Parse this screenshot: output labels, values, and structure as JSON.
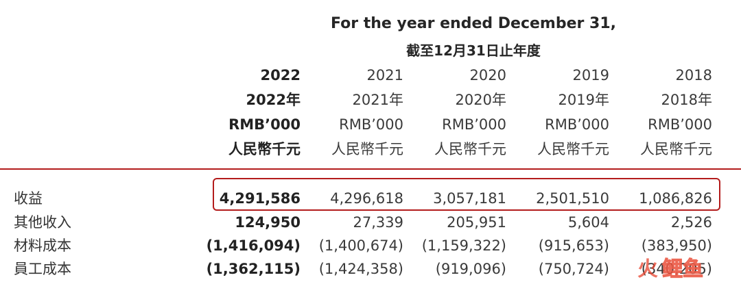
{
  "caption": {
    "en": "For the year ended December 31,",
    "zh": "截至12月31日止年度"
  },
  "columns": [
    {
      "year": "2022",
      "year_zh": "2022年",
      "unit": "RMB’000",
      "unit_zh": "人民幣千元"
    },
    {
      "year": "2021",
      "year_zh": "2021年",
      "unit": "RMB’000",
      "unit_zh": "人民幣千元"
    },
    {
      "year": "2020",
      "year_zh": "2020年",
      "unit": "RMB’000",
      "unit_zh": "人民幣千元"
    },
    {
      "year": "2019",
      "year_zh": "2019年",
      "unit": "RMB’000",
      "unit_zh": "人民幣千元"
    },
    {
      "year": "2018",
      "year_zh": "2018年",
      "unit": "RMB’000",
      "unit_zh": "人民幣千元"
    }
  ],
  "rows": [
    {
      "label": "收益",
      "values": [
        "4,291,586",
        "4,296,618",
        "3,057,181",
        "2,501,510",
        "1,086,826"
      ]
    },
    {
      "label": "其他收入",
      "values": [
        "124,950",
        "27,339",
        "205,951",
        "5,604",
        "2,526"
      ]
    },
    {
      "label": "材料成本",
      "values": [
        "(1,416,094)",
        "(1,400,674)",
        "(1,159,322)",
        "(915,653)",
        "(383,950)"
      ]
    },
    {
      "label": "員工成本",
      "values": [
        "(1,362,115)",
        "(1,424,358)",
        "(919,096)",
        "(750,724)",
        "(340,205)"
      ]
    }
  ],
  "colors": {
    "accent": "#b31b1b",
    "watermark": "#e8432d"
  },
  "watermark": {
    "text": "火鲤鱼"
  }
}
